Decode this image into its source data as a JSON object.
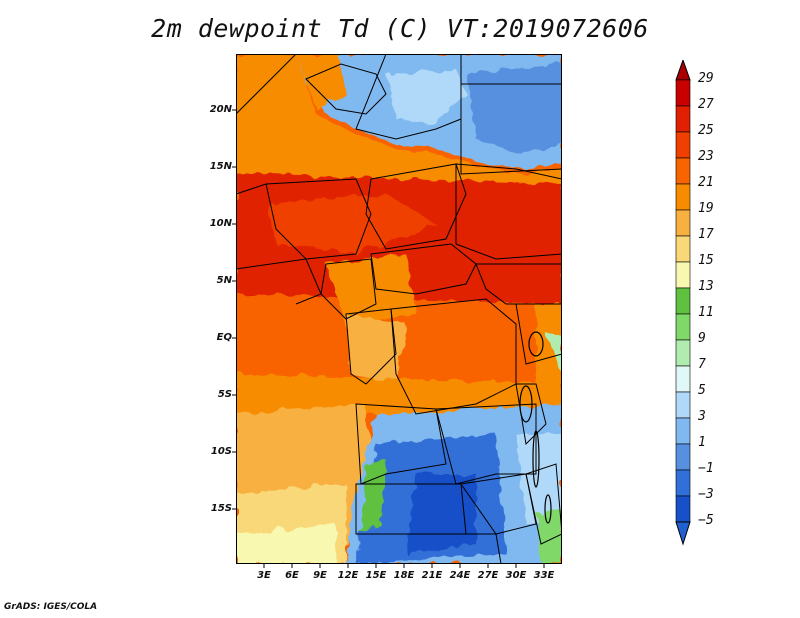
{
  "title": "2m dewpoint Td (C) VT:2019072606",
  "footer": "GrADS: IGES/COLA",
  "map": {
    "variable": "2m dewpoint",
    "units": "C",
    "valid_time": "2019072606",
    "lat_labels": [
      "20N",
      "15N",
      "10N",
      "5N",
      "EQ",
      "5S",
      "10S",
      "15S"
    ],
    "lon_labels": [
      "3E",
      "6E",
      "9E",
      "12E",
      "15E",
      "18E",
      "21E",
      "24E",
      "27E",
      "30E",
      "33E"
    ]
  },
  "colorbar": {
    "levels": [
      "29",
      "27",
      "25",
      "23",
      "21",
      "19",
      "17",
      "15",
      "13",
      "11",
      "9",
      "7",
      "5",
      "3",
      "1",
      "−1",
      "−3",
      "−5"
    ],
    "colors": [
      "#a80000",
      "#c80000",
      "#e02000",
      "#f04000",
      "#f86400",
      "#f88c00",
      "#f8b040",
      "#f8d878",
      "#f8f8b0",
      "#60c040",
      "#80d868",
      "#b0ecb0",
      "#e0f8f8",
      "#b0d8f8",
      "#80b8f0",
      "#5890e0",
      "#3070d8",
      "#1850c8",
      "#2060d0"
    ]
  }
}
